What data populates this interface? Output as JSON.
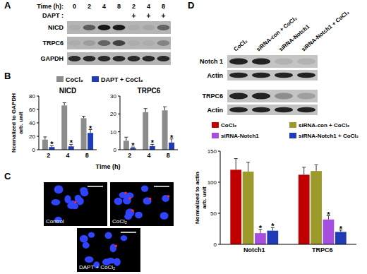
{
  "panel_labels": [
    "A",
    "B",
    "C",
    "D"
  ],
  "blot_a": {
    "time_label": "Time (h):",
    "times": [
      "0",
      "2",
      "4",
      "8",
      "2",
      "4",
      "8"
    ],
    "dapt_label": "DAPT :",
    "dapt": [
      null,
      null,
      null,
      null,
      "+",
      "+",
      "+"
    ],
    "rows": [
      {
        "label": "NICD",
        "bands": [
          0.05,
          0.55,
          0.95,
          0.95,
          0.05,
          0.08,
          0.5
        ]
      },
      {
        "label": "TRPC6",
        "bands": [
          0.05,
          0.15,
          0.5,
          0.7,
          0.05,
          0.05,
          0.3
        ]
      },
      {
        "label": "GAPDH",
        "bands": [
          0.85,
          0.85,
          0.85,
          0.85,
          0.85,
          0.85,
          0.85
        ]
      }
    ]
  },
  "images_c": {
    "tiles": [
      {
        "label": "Control",
        "red_spots": 1
      },
      {
        "label": "CoCl₂",
        "red_spots": 5
      },
      {
        "label": "DAPT + CoCl₂",
        "red_spots": 1
      }
    ]
  },
  "blot_d": {
    "columns": [
      "CoCl₂",
      "siRNA-con + CoCl₂",
      "siRNA-Notch1",
      "siRNA-Notch1 + CoCl₂"
    ],
    "rows": [
      {
        "label": "Notch 1",
        "bands": [
          0.9,
          0.9,
          0.1,
          0.1
        ]
      },
      {
        "label": "Actin",
        "bands": [
          0.9,
          0.9,
          0.9,
          0.9
        ]
      },
      {
        "label": "TRPC6",
        "bands": [
          0.9,
          0.9,
          0.3,
          0.2
        ]
      },
      {
        "label": "Actin",
        "bands": [
          0.9,
          0.9,
          0.9,
          0.9
        ]
      }
    ]
  },
  "chart_data": [
    {
      "type": "bar",
      "title": "NICD",
      "x_label": "Time (h)",
      "y_label": [
        "Normalized to GAPDH",
        "arb. unit"
      ],
      "categories": [
        "2",
        "4",
        "8"
      ],
      "ylim": [
        0,
        80
      ],
      "yticks": [
        0,
        20,
        40,
        60,
        80
      ],
      "legend": "top",
      "series": [
        {
          "name": "CoCl₂",
          "color": "#8c8c8c",
          "values": [
            15,
            66,
            47
          ],
          "errors": [
            4,
            4,
            3
          ]
        },
        {
          "name": "DAPT + CoCl₂",
          "color": "#1f3bb5",
          "values": [
            4,
            5,
            25
          ],
          "errors": [
            2,
            3,
            5
          ],
          "significance": [
            "*",
            "*",
            "*"
          ]
        }
      ]
    },
    {
      "type": "bar",
      "title": "TRPC6",
      "categories": [
        "2",
        "4",
        "8"
      ],
      "ylim": [
        0,
        30
      ],
      "yticks": [
        0,
        10,
        20,
        30
      ],
      "series": [
        {
          "color": "#8c8c8c",
          "values": [
            5,
            21,
            22
          ],
          "errors": [
            2,
            2,
            2
          ]
        },
        {
          "color": "#1f3bb5",
          "values": [
            1,
            2,
            4
          ],
          "errors": [
            0.5,
            1,
            2
          ],
          "significance": [
            "*",
            "*",
            "*"
          ]
        }
      ]
    },
    {
      "type": "bar",
      "y_label": [
        "Normalized to actin",
        "arb. unit"
      ],
      "categories": [
        "Notch1",
        "TRPC6"
      ],
      "ylim": [
        0,
        150
      ],
      "yticks": [
        0,
        50,
        100,
        150
      ],
      "legend": "top",
      "series": [
        {
          "name": "CoCl₂",
          "color": "#c00000",
          "values": [
            120,
            112
          ],
          "errors": [
            18,
            12
          ]
        },
        {
          "name": "siRNA-con + CoCl₂",
          "color": "#9c9a2a",
          "values": [
            117,
            118
          ],
          "errors": [
            15,
            10
          ]
        },
        {
          "name": "siRNA-Notch1",
          "color": "#a64ee0",
          "values": [
            18,
            40
          ],
          "errors": [
            6,
            6
          ],
          "significance": [
            "*",
            "*"
          ]
        },
        {
          "name": "siRNA-Notch1 + CoCl₂",
          "color": "#1f3bb5",
          "values": [
            22,
            20
          ],
          "errors": [
            5,
            3
          ],
          "significance": [
            "*",
            "*"
          ]
        }
      ]
    }
  ]
}
